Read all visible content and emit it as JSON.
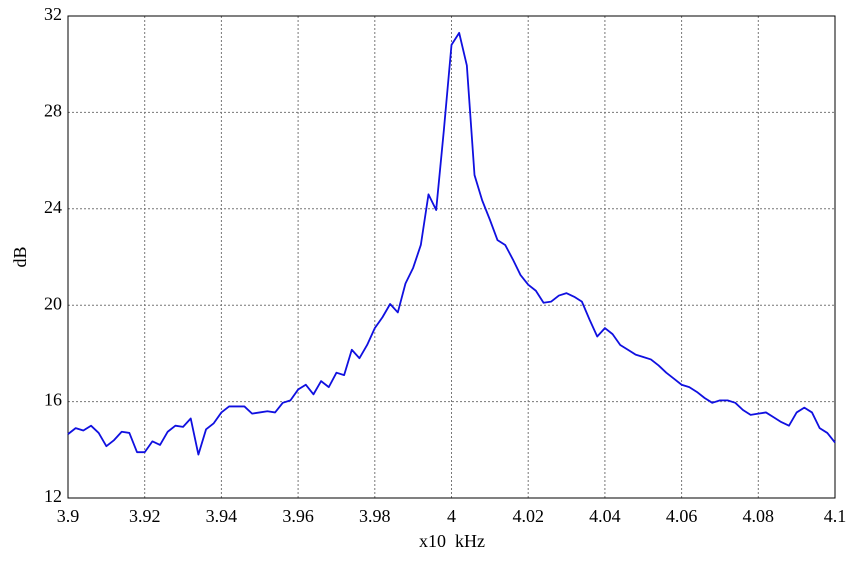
{
  "chart_data": {
    "type": "line",
    "ylabel": "dB",
    "xlabel": "x10  kHz",
    "xlim": [
      3.9,
      4.1
    ],
    "ylim": [
      12,
      32
    ],
    "xticks": [
      3.9,
      3.92,
      3.94,
      3.96,
      3.98,
      4,
      4.02,
      4.04,
      4.06,
      4.08,
      4.1
    ],
    "yticks": [
      12,
      16,
      20,
      24,
      28,
      32
    ],
    "grid": true,
    "x": [
      3.9,
      3.902,
      3.904,
      3.906,
      3.908,
      3.91,
      3.912,
      3.914,
      3.916,
      3.918,
      3.92,
      3.922,
      3.924,
      3.926,
      3.928,
      3.93,
      3.932,
      3.934,
      3.936,
      3.938,
      3.94,
      3.942,
      3.944,
      3.946,
      3.948,
      3.95,
      3.952,
      3.954,
      3.956,
      3.958,
      3.96,
      3.962,
      3.964,
      3.966,
      3.968,
      3.97,
      3.972,
      3.974,
      3.976,
      3.978,
      3.98,
      3.982,
      3.984,
      3.986,
      3.988,
      3.99,
      3.992,
      3.994,
      3.996,
      3.998,
      4,
      4.002,
      4.004,
      4.006,
      4.008,
      4.01,
      4.012,
      4.014,
      4.016,
      4.018,
      4.02,
      4.022,
      4.024,
      4.026,
      4.028,
      4.03,
      4.032,
      4.034,
      4.036,
      4.038,
      4.04,
      4.042,
      4.044,
      4.046,
      4.048,
      4.05,
      4.052,
      4.054,
      4.056,
      4.058,
      4.06,
      4.062,
      4.064,
      4.066,
      4.068,
      4.07,
      4.072,
      4.074,
      4.076,
      4.078,
      4.08,
      4.082,
      4.084,
      4.086,
      4.088,
      4.09,
      4.092,
      4.094,
      4.096,
      4.098,
      4.1
    ],
    "series": [
      {
        "color": "#1010e0",
        "values": [
          14.65,
          14.9,
          14.8,
          15.0,
          14.7,
          14.15,
          14.4,
          14.75,
          14.7,
          13.9,
          13.9,
          14.35,
          14.2,
          14.75,
          15.0,
          14.95,
          15.3,
          13.8,
          14.85,
          15.1,
          15.55,
          15.8,
          15.8,
          15.8,
          15.5,
          15.55,
          15.6,
          15.55,
          15.95,
          16.05,
          16.5,
          16.7,
          16.3,
          16.85,
          16.6,
          17.2,
          17.1,
          18.15,
          17.8,
          18.35,
          19.05,
          19.5,
          20.05,
          19.7,
          20.9,
          21.55,
          22.5,
          24.6,
          23.95,
          27.25,
          30.8,
          31.3,
          29.95,
          25.4,
          24.35,
          23.55,
          22.7,
          22.5,
          21.9,
          21.25,
          20.85,
          20.6,
          20.1,
          20.15,
          20.4,
          20.5,
          20.35,
          20.15,
          19.4,
          18.7,
          19.05,
          18.8,
          18.35,
          18.15,
          17.95,
          17.85,
          17.75,
          17.5,
          17.2,
          16.95,
          16.7,
          16.6,
          16.4,
          16.15,
          15.95,
          16.05,
          16.05,
          15.95,
          15.65,
          15.45,
          15.5,
          15.55,
          15.35,
          15.15,
          15.0,
          15.55,
          15.75,
          15.55,
          14.9,
          14.7,
          14.3
        ]
      }
    ]
  }
}
